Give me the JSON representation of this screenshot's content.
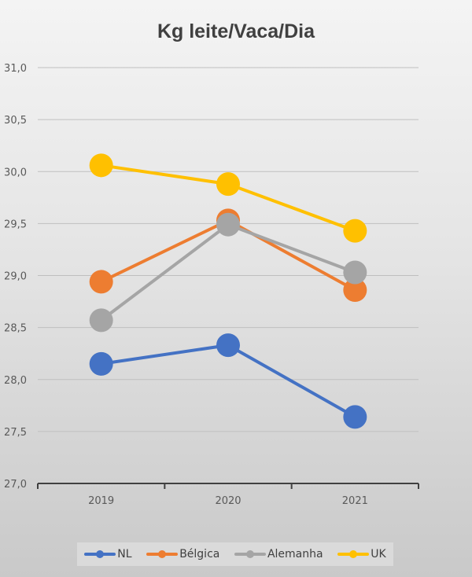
{
  "chart_data": {
    "type": "line",
    "title": "Kg leite/Vaca/Dia",
    "xlabel": "",
    "ylabel": "",
    "categories": [
      "2019",
      "2020",
      "2021"
    ],
    "ylim": [
      27.0,
      31.0
    ],
    "yticks": [
      "27,0",
      "27,5",
      "28,0",
      "28,5",
      "29,0",
      "29,5",
      "30,0",
      "30,5",
      "31,0"
    ],
    "grid": true,
    "legend": "bottom",
    "series": [
      {
        "name": "NL",
        "color": "#4472c4",
        "values": [
          28.15,
          28.33,
          27.64
        ]
      },
      {
        "name": "Bélgica",
        "color": "#ed7d31",
        "values": [
          28.94,
          29.53,
          28.86
        ]
      },
      {
        "name": "Alemanha",
        "color": "#a5a5a5",
        "values": [
          28.57,
          29.49,
          29.03
        ]
      },
      {
        "name": "UK",
        "color": "#ffc000",
        "values": [
          30.06,
          29.88,
          29.43
        ]
      }
    ]
  }
}
